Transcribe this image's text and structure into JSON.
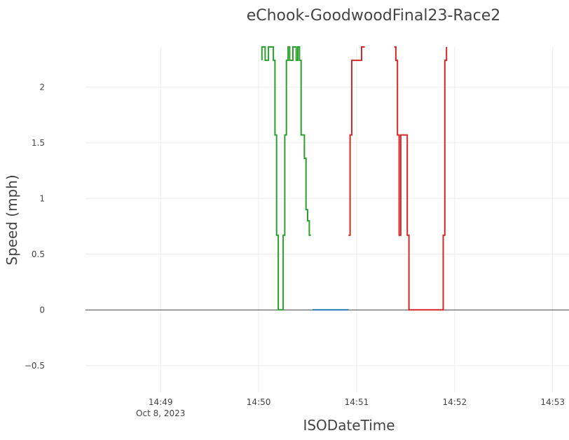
{
  "chart_data": {
    "type": "line",
    "title": "eChook-GoodwoodFinal23-Race2",
    "xlabel": "ISODateTime",
    "ylabel": "Speed (mph)",
    "x_axis": {
      "type": "date",
      "range": [
        "2023-10-08T14:48:14",
        "2023-10-08T14:53:10"
      ],
      "ticks": [
        {
          "value": "2023-10-08T14:49:00",
          "label": "14:49",
          "sublabel": "Oct 8, 2023"
        },
        {
          "value": "2023-10-08T14:50:00",
          "label": "14:50",
          "sublabel": ""
        },
        {
          "value": "2023-10-08T14:51:00",
          "label": "14:51",
          "sublabel": ""
        },
        {
          "value": "2023-10-08T14:52:00",
          "label": "14:52",
          "sublabel": ""
        },
        {
          "value": "2023-10-08T14:53:00",
          "label": "14:53",
          "sublabel": ""
        }
      ]
    },
    "y_axis": {
      "range": [
        -0.74,
        2.36
      ],
      "ticks": [
        {
          "value": -0.5,
          "label": "−0.5"
        },
        {
          "value": 0,
          "label": "0"
        },
        {
          "value": 0.5,
          "label": "0.5"
        },
        {
          "value": 1,
          "label": "1"
        },
        {
          "value": 1.5,
          "label": "1.5"
        },
        {
          "value": 2,
          "label": "2"
        }
      ]
    },
    "grid": true,
    "legend": "none",
    "series": [
      {
        "color": "#2ca02c",
        "x": [
          "2023-10-08T14:50:02",
          "2023-10-08T14:50:02",
          "2023-10-08T14:50:04",
          "2023-10-08T14:50:04",
          "2023-10-08T14:50:06",
          "2023-10-08T14:50:06",
          "2023-10-08T14:50:09",
          "2023-10-08T14:50:09",
          "2023-10-08T14:50:10",
          "2023-10-08T14:50:10",
          "2023-10-08T14:50:11",
          "2023-10-08T14:50:11",
          "2023-10-08T14:50:12",
          "2023-10-08T14:50:12",
          "2023-10-08T14:50:15",
          "2023-10-08T14:50:15",
          "2023-10-08T14:50:16",
          "2023-10-08T14:50:16",
          "2023-10-08T14:50:17",
          "2023-10-08T14:50:17",
          "2023-10-08T14:50:18",
          "2023-10-08T14:50:18",
          "2023-10-08T14:50:19",
          "2023-10-08T14:50:19",
          "2023-10-08T14:50:21",
          "2023-10-08T14:50:21",
          "2023-10-08T14:50:23",
          "2023-10-08T14:50:23",
          "2023-10-08T14:50:24",
          "2023-10-08T14:50:24",
          "2023-10-08T14:50:25",
          "2023-10-08T14:50:25",
          "2023-10-08T14:50:26",
          "2023-10-08T14:50:26",
          "2023-10-08T14:50:28",
          "2023-10-08T14:50:28",
          "2023-10-08T14:50:29",
          "2023-10-08T14:50:29",
          "2023-10-08T14:50:30",
          "2023-10-08T14:50:30",
          "2023-10-08T14:50:31",
          "2023-10-08T14:50:31",
          "2023-10-08T14:50:32",
          "2023-10-08T14:50:32",
          "2023-10-08T14:50:32"
        ],
        "y": [
          2.24,
          2.36,
          2.36,
          2.24,
          2.24,
          2.36,
          2.36,
          2.24,
          2.24,
          1.57,
          1.57,
          0.67,
          0.67,
          0,
          0,
          0.67,
          0.67,
          1.57,
          1.57,
          2.24,
          2.24,
          2.36,
          2.36,
          2.24,
          2.24,
          2.36,
          2.36,
          2.24,
          2.24,
          2.36,
          2.36,
          2.24,
          2.24,
          1.57,
          1.57,
          1.36,
          1.36,
          0.9,
          0.9,
          0.8,
          0.8,
          0.67,
          0.67,
          0.67,
          0.67
        ]
      },
      {
        "color": "#1f77b4",
        "x": [
          "2023-10-08T14:50:33",
          "2023-10-08T14:50:55"
        ],
        "y": [
          0,
          0
        ]
      },
      {
        "color": "#d62728",
        "x": [
          "2023-10-08T14:50:55",
          "2023-10-08T14:50:56",
          "2023-10-08T14:50:56",
          "2023-10-08T14:50:57",
          "2023-10-08T14:50:57",
          "2023-10-08T14:50:58",
          "2023-10-08T14:50:58",
          "2023-10-08T14:51:03",
          "2023-10-08T14:51:03",
          "2023-10-08T14:51:05",
          "2023-10-08T14:51:05"
        ],
        "y": [
          0.67,
          0.67,
          1.57,
          1.57,
          2.24,
          2.24,
          2.24,
          2.24,
          2.36,
          2.36,
          2.36
        ]
      },
      {
        "color": "#d62728",
        "x": [
          "2023-10-08T14:51:23",
          "2023-10-08T14:51:24",
          "2023-10-08T14:51:24",
          "2023-10-08T14:51:25",
          "2023-10-08T14:51:25",
          "2023-10-08T14:51:26",
          "2023-10-08T14:51:26",
          "2023-10-08T14:51:27",
          "2023-10-08T14:51:27",
          "2023-10-08T14:51:28",
          "2023-10-08T14:51:28",
          "2023-10-08T14:51:31",
          "2023-10-08T14:51:31",
          "2023-10-08T14:51:32",
          "2023-10-08T14:51:32",
          "2023-10-08T14:51:53",
          "2023-10-08T14:51:53",
          "2023-10-08T14:51:54",
          "2023-10-08T14:51:54",
          "2023-10-08T14:51:55",
          "2023-10-08T14:51:55"
        ],
        "y": [
          2.36,
          2.36,
          2.24,
          2.24,
          1.57,
          1.57,
          0.67,
          0.67,
          1.57,
          1.57,
          1.57,
          1.57,
          0.67,
          0.67,
          0,
          0,
          0.67,
          0.67,
          2.24,
          2.24,
          2.36
        ]
      }
    ]
  }
}
